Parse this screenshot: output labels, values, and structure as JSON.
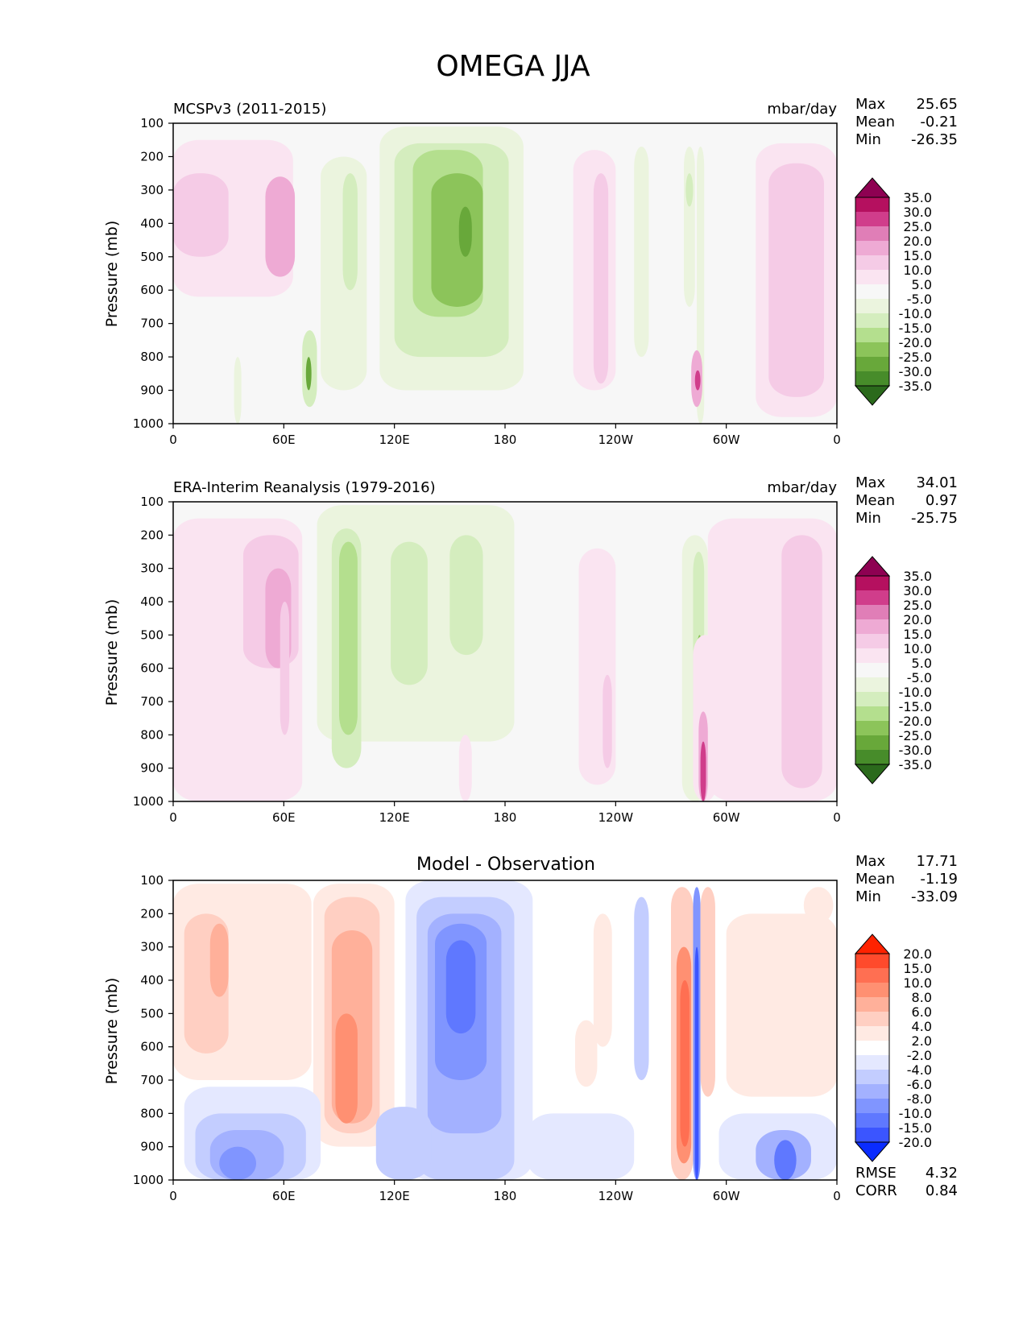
{
  "title": "OMEGA JJA",
  "panels": [
    {
      "left_title": "MCSPv3 (2011-2015)",
      "center_title": "",
      "units": "mbar/day",
      "ylabel": "Pressure (mb)",
      "stats": [
        {
          "label": "Max",
          "value": "25.65"
        },
        {
          "label": "Mean",
          "value": "-0.21"
        },
        {
          "label": "Min",
          "value": "-26.35"
        }
      ],
      "colorbar": "omega"
    },
    {
      "left_title": "ERA-Interim Reanalysis (1979-2016)",
      "center_title": "",
      "units": "mbar/day",
      "ylabel": "Pressure (mb)",
      "stats": [
        {
          "label": "Max",
          "value": "34.01"
        },
        {
          "label": "Mean",
          "value": "0.97"
        },
        {
          "label": "Min",
          "value": "-25.75"
        }
      ],
      "colorbar": "omega"
    },
    {
      "left_title": "",
      "center_title": "Model - Observation",
      "units": "",
      "ylabel": "Pressure (mb)",
      "stats": [
        {
          "label": "Max",
          "value": "17.71"
        },
        {
          "label": "Mean",
          "value": "-1.19"
        },
        {
          "label": "Min",
          "value": "-33.09"
        }
      ],
      "extra_stats": [
        {
          "label": "RMSE",
          "value": "4.32"
        },
        {
          "label": "CORR",
          "value": "0.84"
        }
      ],
      "colorbar": "diff"
    }
  ],
  "colorbars": {
    "omega": {
      "labels": [
        "35.0",
        "30.0",
        "25.0",
        "20.0",
        "15.0",
        "10.0",
        "5.0",
        "-5.0",
        "-10.0",
        "-15.0",
        "-20.0",
        "-25.0",
        "-30.0",
        "-35.0"
      ],
      "colors": [
        "#8e0152",
        "#b5105f",
        "#d03d8b",
        "#e07eb7",
        "#eeaad4",
        "#f5cbe6",
        "#fae4f1",
        "#f7f7f7",
        "#ebf4de",
        "#d4edbe",
        "#b4df8e",
        "#8cc45a",
        "#68a83a",
        "#478c2a",
        "#2b6a1c"
      ]
    },
    "diff": {
      "labels": [
        "20.0",
        "15.0",
        "10.0",
        "8.0",
        "6.0",
        "4.0",
        "2.0",
        "-2.0",
        "-4.0",
        "-6.0",
        "-8.0",
        "-10.0",
        "-15.0",
        "-20.0"
      ],
      "colors": [
        "#ff2200",
        "#ff4a2c",
        "#ff6f52",
        "#ff9072",
        "#ffb09a",
        "#ffcfc2",
        "#ffeae3",
        "#ffffff",
        "#e4e8ff",
        "#c3cdff",
        "#a3b1ff",
        "#8095ff",
        "#5f78ff",
        "#3b55ff",
        "#0a2cff"
      ]
    }
  },
  "chart_data": [
    {
      "type": "heatmap",
      "title": "MCSPv3 (2011-2015)",
      "units": "mbar/day",
      "xlabel": "",
      "ylabel": "Pressure (mb)",
      "x_ticks": [
        "0",
        "60E",
        "120E",
        "180",
        "120W",
        "60W",
        "0"
      ],
      "x_tick_values": [
        0,
        60,
        120,
        180,
        240,
        300,
        360
      ],
      "xlim": [
        0,
        360
      ],
      "y_ticks": [
        "100",
        "200",
        "300",
        "400",
        "500",
        "600",
        "700",
        "800",
        "900",
        "1000"
      ],
      "ylim": [
        1000,
        100
      ],
      "levels": [
        -35,
        -30,
        -25,
        -20,
        -15,
        -10,
        -5,
        5,
        10,
        15,
        20,
        25,
        30,
        35
      ],
      "features": [
        {
          "lon": [
            0,
            65
          ],
          "p": [
            150,
            620
          ],
          "v": 7
        },
        {
          "lon": [
            0,
            30
          ],
          "p": [
            250,
            500
          ],
          "v": 12
        },
        {
          "lon": [
            50,
            66
          ],
          "p": [
            260,
            560
          ],
          "v": 17
        },
        {
          "lon": [
            80,
            105
          ],
          "p": [
            200,
            900
          ],
          "v": -7
        },
        {
          "lon": [
            92,
            100
          ],
          "p": [
            250,
            600
          ],
          "v": -13
        },
        {
          "lon": [
            112,
            190
          ],
          "p": [
            110,
            900
          ],
          "v": -7
        },
        {
          "lon": [
            120,
            182
          ],
          "p": [
            160,
            800
          ],
          "v": -12
        },
        {
          "lon": [
            130,
            168
          ],
          "p": [
            180,
            680
          ],
          "v": -17
        },
        {
          "lon": [
            140,
            168
          ],
          "p": [
            250,
            650
          ],
          "v": -22
        },
        {
          "lon": [
            155,
            162
          ],
          "p": [
            350,
            500
          ],
          "v": -28
        },
        {
          "lon": [
            217,
            240
          ],
          "p": [
            180,
            900
          ],
          "v": 7
        },
        {
          "lon": [
            228,
            236
          ],
          "p": [
            250,
            880
          ],
          "v": 12
        },
        {
          "lon": [
            250,
            258
          ],
          "p": [
            170,
            800
          ],
          "v": -7
        },
        {
          "lon": [
            277,
            283
          ],
          "p": [
            170,
            650
          ],
          "v": -7
        },
        {
          "lon": [
            278,
            282
          ],
          "p": [
            250,
            350
          ],
          "v": -13
        },
        {
          "lon": [
            284,
            288
          ],
          "p": [
            170,
            1000
          ],
          "v": -7
        },
        {
          "lon": [
            290,
            320
          ],
          "p": [
            180,
            700
          ],
          "v": -2
        },
        {
          "lon": [
            316,
            368
          ],
          "p": [
            160,
            980
          ],
          "v": 7
        },
        {
          "lon": [
            323,
            353
          ],
          "p": [
            220,
            920
          ],
          "v": 12
        },
        {
          "lon": [
            281,
            287
          ],
          "p": [
            780,
            950
          ],
          "v": 20
        },
        {
          "lon": [
            283,
            286
          ],
          "p": [
            840,
            900
          ],
          "v": 30
        },
        {
          "lon": [
            70,
            78
          ],
          "p": [
            720,
            950
          ],
          "v": -13
        },
        {
          "lon": [
            72,
            75
          ],
          "p": [
            800,
            900
          ],
          "v": -25
        },
        {
          "lon": [
            33,
            37
          ],
          "p": [
            800,
            1000
          ],
          "v": -7
        }
      ]
    },
    {
      "type": "heatmap",
      "title": "ERA-Interim Reanalysis (1979-2016)",
      "units": "mbar/day",
      "xlabel": "",
      "ylabel": "Pressure (mb)",
      "x_ticks": [
        "0",
        "60E",
        "120E",
        "180",
        "120W",
        "60W",
        "0"
      ],
      "x_tick_values": [
        0,
        60,
        120,
        180,
        240,
        300,
        360
      ],
      "xlim": [
        0,
        360
      ],
      "y_ticks": [
        "100",
        "200",
        "300",
        "400",
        "500",
        "600",
        "700",
        "800",
        "900",
        "1000"
      ],
      "ylim": [
        1000,
        100
      ],
      "levels": [
        -35,
        -30,
        -25,
        -20,
        -15,
        -10,
        -5,
        5,
        10,
        15,
        20,
        25,
        30,
        35
      ],
      "features": [
        {
          "lon": [
            0,
            70
          ],
          "p": [
            150,
            1000
          ],
          "v": 7
        },
        {
          "lon": [
            38,
            68
          ],
          "p": [
            200,
            600
          ],
          "v": 12
        },
        {
          "lon": [
            50,
            64
          ],
          "p": [
            300,
            600
          ],
          "v": 17
        },
        {
          "lon": [
            58,
            63
          ],
          "p": [
            400,
            800
          ],
          "v": 12
        },
        {
          "lon": [
            78,
            185
          ],
          "p": [
            110,
            820
          ],
          "v": -7
        },
        {
          "lon": [
            86,
            102
          ],
          "p": [
            180,
            900
          ],
          "v": -12
        },
        {
          "lon": [
            90,
            100
          ],
          "p": [
            220,
            800
          ],
          "v": -17
        },
        {
          "lon": [
            118,
            138
          ],
          "p": [
            220,
            650
          ],
          "v": -12
        },
        {
          "lon": [
            150,
            168
          ],
          "p": [
            200,
            560
          ],
          "v": -12
        },
        {
          "lon": [
            220,
            240
          ],
          "p": [
            240,
            950
          ],
          "v": 7
        },
        {
          "lon": [
            233,
            238
          ],
          "p": [
            620,
            900
          ],
          "v": 12
        },
        {
          "lon": [
            276,
            290
          ],
          "p": [
            200,
            1000
          ],
          "v": -7
        },
        {
          "lon": [
            282,
            288
          ],
          "p": [
            250,
            800
          ],
          "v": -13
        },
        {
          "lon": [
            284,
            287
          ],
          "p": [
            500,
            750
          ],
          "v": -20
        },
        {
          "lon": [
            282,
            295
          ],
          "p": [
            500,
            1000
          ],
          "v": 7
        },
        {
          "lon": [
            290,
            372
          ],
          "p": [
            150,
            1000
          ],
          "v": 7
        },
        {
          "lon": [
            330,
            352
          ],
          "p": [
            200,
            960
          ],
          "v": 12
        },
        {
          "lon": [
            285,
            290
          ],
          "p": [
            730,
            1000
          ],
          "v": 18
        },
        {
          "lon": [
            286,
            289
          ],
          "p": [
            820,
            1000
          ],
          "v": 30
        },
        {
          "lon": [
            155,
            162
          ],
          "p": [
            800,
            1000
          ],
          "v": 10
        }
      ]
    },
    {
      "type": "heatmap",
      "title": "Model - Observation",
      "units": "",
      "xlabel": "",
      "ylabel": "Pressure (mb)",
      "x_ticks": [
        "0",
        "60E",
        "120E",
        "180",
        "120W",
        "60W",
        "0"
      ],
      "x_tick_values": [
        0,
        60,
        120,
        180,
        240,
        300,
        360
      ],
      "xlim": [
        0,
        360
      ],
      "y_ticks": [
        "100",
        "200",
        "300",
        "400",
        "500",
        "600",
        "700",
        "800",
        "900",
        "1000"
      ],
      "ylim": [
        1000,
        100
      ],
      "levels": [
        -20,
        -15,
        -10,
        -8,
        -6,
        -4,
        -2,
        2,
        4,
        6,
        8,
        10,
        15,
        20
      ],
      "features": [
        {
          "lon": [
            0,
            75
          ],
          "p": [
            110,
            700
          ],
          "v": 3
        },
        {
          "lon": [
            6,
            30
          ],
          "p": [
            200,
            620
          ],
          "v": 5
        },
        {
          "lon": [
            20,
            30
          ],
          "p": [
            230,
            450
          ],
          "v": 7
        },
        {
          "lon": [
            76,
            120
          ],
          "p": [
            110,
            900
          ],
          "v": 3
        },
        {
          "lon": [
            82,
            112
          ],
          "p": [
            150,
            860
          ],
          "v": 5
        },
        {
          "lon": [
            86,
            108
          ],
          "p": [
            250,
            830
          ],
          "v": 7
        },
        {
          "lon": [
            88,
            100
          ],
          "p": [
            500,
            830
          ],
          "v": 9
        },
        {
          "lon": [
            126,
            195
          ],
          "p": [
            100,
            1000
          ],
          "v": -3
        },
        {
          "lon": [
            132,
            185
          ],
          "p": [
            150,
            1000
          ],
          "v": -5
        },
        {
          "lon": [
            138,
            178
          ],
          "p": [
            200,
            860
          ],
          "v": -7
        },
        {
          "lon": [
            142,
            170
          ],
          "p": [
            230,
            700
          ],
          "v": -9
        },
        {
          "lon": [
            148,
            164
          ],
          "p": [
            280,
            560
          ],
          "v": -12
        },
        {
          "lon": [
            6,
            80
          ],
          "p": [
            720,
            1000
          ],
          "v": -3
        },
        {
          "lon": [
            12,
            72
          ],
          "p": [
            800,
            1000
          ],
          "v": -5
        },
        {
          "lon": [
            20,
            60
          ],
          "p": [
            850,
            1000
          ],
          "v": -7
        },
        {
          "lon": [
            25,
            45
          ],
          "p": [
            900,
            1000
          ],
          "v": -9
        },
        {
          "lon": [
            110,
            140
          ],
          "p": [
            780,
            1000
          ],
          "v": -5
        },
        {
          "lon": [
            192,
            250
          ],
          "p": [
            800,
            1000
          ],
          "v": -3
        },
        {
          "lon": [
            228,
            238
          ],
          "p": [
            200,
            600
          ],
          "v": 3
        },
        {
          "lon": [
            218,
            230
          ],
          "p": [
            520,
            720
          ],
          "v": 3
        },
        {
          "lon": [
            250,
            258
          ],
          "p": [
            150,
            700
          ],
          "v": -5
        },
        {
          "lon": [
            270,
            282
          ],
          "p": [
            120,
            1000
          ],
          "v": 5
        },
        {
          "lon": [
            273,
            281
          ],
          "p": [
            300,
            950
          ],
          "v": 9
        },
        {
          "lon": [
            275,
            280
          ],
          "p": [
            400,
            900
          ],
          "v": 13
        },
        {
          "lon": [
            282,
            286
          ],
          "p": [
            120,
            1000
          ],
          "v": -8
        },
        {
          "lon": [
            283,
            285
          ],
          "p": [
            300,
            1000
          ],
          "v": -18
        },
        {
          "lon": [
            286,
            294
          ],
          "p": [
            120,
            750
          ],
          "v": 5
        },
        {
          "lon": [
            300,
            362
          ],
          "p": [
            200,
            750
          ],
          "v": 3
        },
        {
          "lon": [
            296,
            360
          ],
          "p": [
            800,
            1000
          ],
          "v": -3
        },
        {
          "lon": [
            316,
            346
          ],
          "p": [
            850,
            1000
          ],
          "v": -6
        },
        {
          "lon": [
            326,
            338
          ],
          "p": [
            880,
            1000
          ],
          "v": -10
        },
        {
          "lon": [
            342,
            358
          ],
          "p": [
            120,
            230
          ],
          "v": 3
        }
      ]
    }
  ]
}
